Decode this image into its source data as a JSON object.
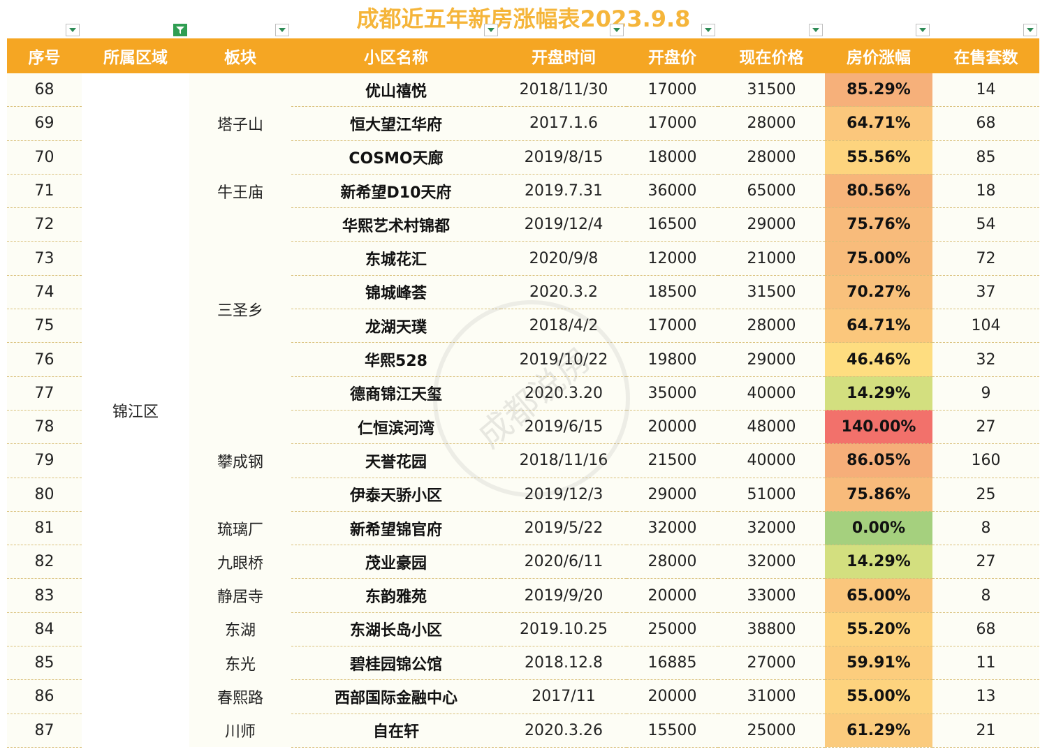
{
  "title": "成都近五年新房涨幅表2023.9.8",
  "headers": [
    "序号",
    "所属区域",
    "板块",
    "小区名称",
    "开盘时间",
    "开盘价",
    "现在价格",
    "房价涨幅",
    "在售套数"
  ],
  "region": "锦江区",
  "blocks": [
    {
      "name": "塔子山",
      "span": 3
    },
    {
      "name": "牛王庙",
      "span": 1
    },
    {
      "name": "三圣乡",
      "span": 6
    },
    {
      "name": "攀成钢",
      "span": 3
    },
    {
      "name": "琉璃厂",
      "span": 1
    },
    {
      "name": "九眼桥",
      "span": 1
    },
    {
      "name": "静居寺",
      "span": 1
    },
    {
      "name": "东湖",
      "span": 1
    },
    {
      "name": "东光",
      "span": 1
    },
    {
      "name": "春熙路",
      "span": 1
    },
    {
      "name": "川师",
      "span": 1
    }
  ],
  "rows": [
    {
      "no": "68",
      "name": "优山禧悦",
      "date": "2018/11/30",
      "open": "17000",
      "now": "31500",
      "rise": "85.29%",
      "rise_color": "#f6b07a",
      "count": "14"
    },
    {
      "no": "69",
      "name": "恒大望江华府",
      "date": "2017.1.6",
      "open": "17000",
      "now": "28000",
      "rise": "64.71%",
      "rise_color": "#fbc77c",
      "count": "68"
    },
    {
      "no": "70",
      "name": "COSMO天廊",
      "date": "2019/8/15",
      "open": "18000",
      "now": "28000",
      "rise": "55.56%",
      "rise_color": "#fdd47e",
      "count": "85"
    },
    {
      "no": "71",
      "name": "新希望D10天府",
      "date": "2019.7.31",
      "open": "36000",
      "now": "65000",
      "rise": "80.56%",
      "rise_color": "#f7b57a",
      "count": "18"
    },
    {
      "no": "72",
      "name": "华熙艺术村锦都",
      "date": "2019/12/4",
      "open": "16500",
      "now": "29000",
      "rise": "75.76%",
      "rise_color": "#f8bb7b",
      "count": "54"
    },
    {
      "no": "73",
      "name": "东城花汇",
      "date": "2020/9/8",
      "open": "12000",
      "now": "21000",
      "rise": "75.00%",
      "rise_color": "#f8bc7b",
      "count": "72"
    },
    {
      "no": "74",
      "name": "锦城峰荟",
      "date": "2020.3.2",
      "open": "18500",
      "now": "31500",
      "rise": "70.27%",
      "rise_color": "#f9c17c",
      "count": "37"
    },
    {
      "no": "75",
      "name": "龙湖天璞",
      "date": "2018/4/2",
      "open": "17000",
      "now": "28000",
      "rise": "64.71%",
      "rise_color": "#fbc77c",
      "count": "104"
    },
    {
      "no": "76",
      "name": "华熙528",
      "date": "2019/10/22",
      "open": "19800",
      "now": "29000",
      "rise": "46.46%",
      "rise_color": "#fedd80",
      "count": "32"
    },
    {
      "no": "77",
      "name": "德商锦江天玺",
      "date": "2020.3.20",
      "open": "35000",
      "now": "40000",
      "rise": "14.29%",
      "rise_color": "#d3df7f",
      "count": "9"
    },
    {
      "no": "78",
      "name": "仁恒滨河湾",
      "date": "2019/6/15",
      "open": "20000",
      "now": "48000",
      "rise": "140.00%",
      "rise_color": "#f2716b",
      "count": "27"
    },
    {
      "no": "79",
      "name": "天誉花园",
      "date": "2018/11/16",
      "open": "21500",
      "now": "40000",
      "rise": "86.05%",
      "rise_color": "#f6ae79",
      "count": "160"
    },
    {
      "no": "80",
      "name": "伊泰天骄小区",
      "date": "2019/12/3",
      "open": "29000",
      "now": "51000",
      "rise": "75.86%",
      "rise_color": "#f8bb7b",
      "count": "25"
    },
    {
      "no": "81",
      "name": "新希望锦官府",
      "date": "2019/5/22",
      "open": "32000",
      "now": "32000",
      "rise": "0.00%",
      "rise_color": "#a5d07e",
      "count": "8"
    },
    {
      "no": "82",
      "name": "茂业豪园",
      "date": "2020/6/11",
      "open": "28000",
      "now": "32000",
      "rise": "14.29%",
      "rise_color": "#d3df7f",
      "count": "27"
    },
    {
      "no": "83",
      "name": "东韵雅苑",
      "date": "2019/9/20",
      "open": "20000",
      "now": "33000",
      "rise": "65.00%",
      "rise_color": "#fac67c",
      "count": "8"
    },
    {
      "no": "84",
      "name": "东湖长岛小区",
      "date": "2019.10.25",
      "open": "25000",
      "now": "38800",
      "rise": "55.20%",
      "rise_color": "#fdd37e",
      "count": "68"
    },
    {
      "no": "85",
      "name": "碧桂园锦公馆",
      "date": "2018.12.8",
      "open": "16885",
      "now": "27000",
      "rise": "59.91%",
      "rise_color": "#fccd7d",
      "count": "11"
    },
    {
      "no": "86",
      "name": "西部国际金融中心",
      "date": "2017/11",
      "open": "20000",
      "now": "31000",
      "rise": "55.00%",
      "rise_color": "#fdd37e",
      "count": "13"
    },
    {
      "no": "87",
      "name": "自在轩",
      "date": "2020.3.26",
      "open": "15500",
      "now": "25000",
      "rise": "61.29%",
      "rise_color": "#fbcb7d",
      "count": "21"
    }
  ],
  "colors": {
    "header_bg": "#f5a623",
    "header_text": "#ffffff",
    "title": "#f5b53a",
    "filter_active": "#2f9e52"
  },
  "watermark": "成都说房"
}
